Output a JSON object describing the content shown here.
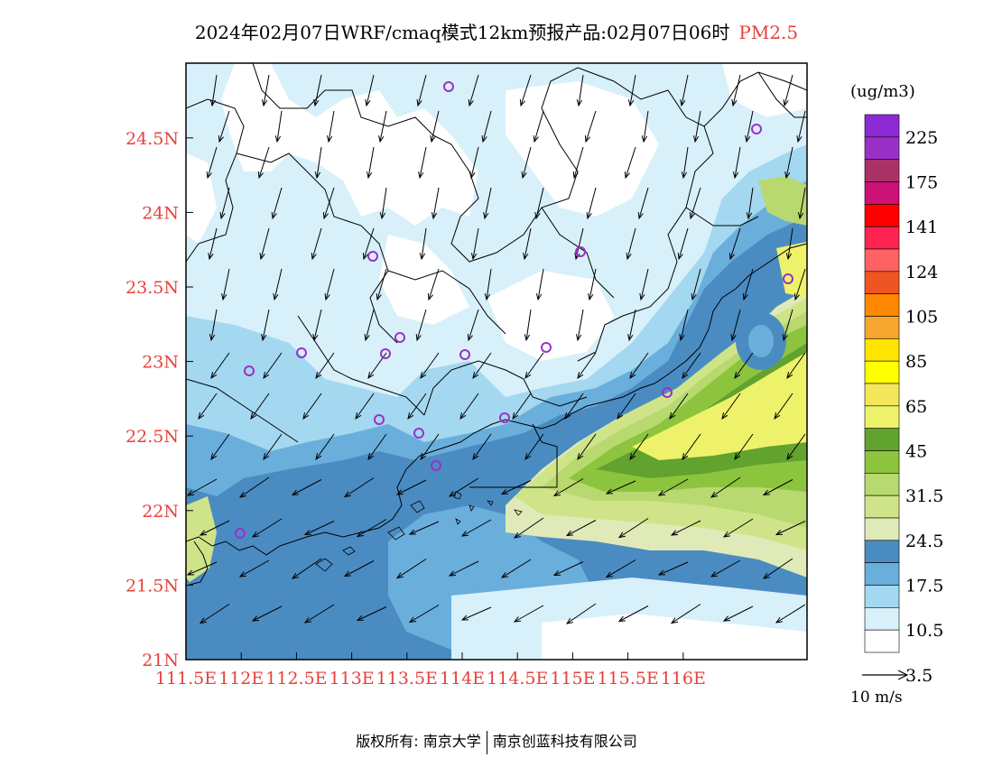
{
  "title": {
    "main": "2024年02月07日WRF/cmaq模式12km预报产品:02月07日06时",
    "species": "PM2.5"
  },
  "map": {
    "lon_ticks": [
      "111.5E",
      "112E",
      "112.5E",
      "113E",
      "113.5E",
      "114E",
      "114.5E",
      "115E",
      "115.5E",
      "116E"
    ],
    "lat_ticks": [
      "21N",
      "21.5N",
      "22N",
      "22.5N",
      "23N",
      "23.5N",
      "24N",
      "24.5N"
    ],
    "label_color": "#e8413c"
  },
  "legend": {
    "unit": "(ug/m3)",
    "labels": [
      "225",
      "175",
      "141",
      "124",
      "105",
      "85",
      "65",
      "45",
      "31.5",
      "24.5",
      "17.5",
      "10.5",
      "3.5"
    ],
    "colors": [
      "#8c2bd6",
      "#9a30c8",
      "#a93166",
      "#cc1177",
      "#ff0000",
      "#ff2450",
      "#ff6262",
      "#ee5522",
      "#ff8800",
      "#f7a630",
      "#ffe400",
      "#ffff00",
      "#f4e65a",
      "#eef26a",
      "#62a22e",
      "#8cc43e",
      "#b8d870",
      "#cfe488",
      "#e0eab8",
      "#4a8cc2",
      "#6aaedc",
      "#a4d8f0",
      "#d8f0fa",
      "#ffffff"
    ]
  },
  "wind": {
    "ref_label": "10 m/s"
  },
  "footer": {
    "left": "版权所有: 南京大学",
    "right": "南京创蓝科技有限公司"
  }
}
